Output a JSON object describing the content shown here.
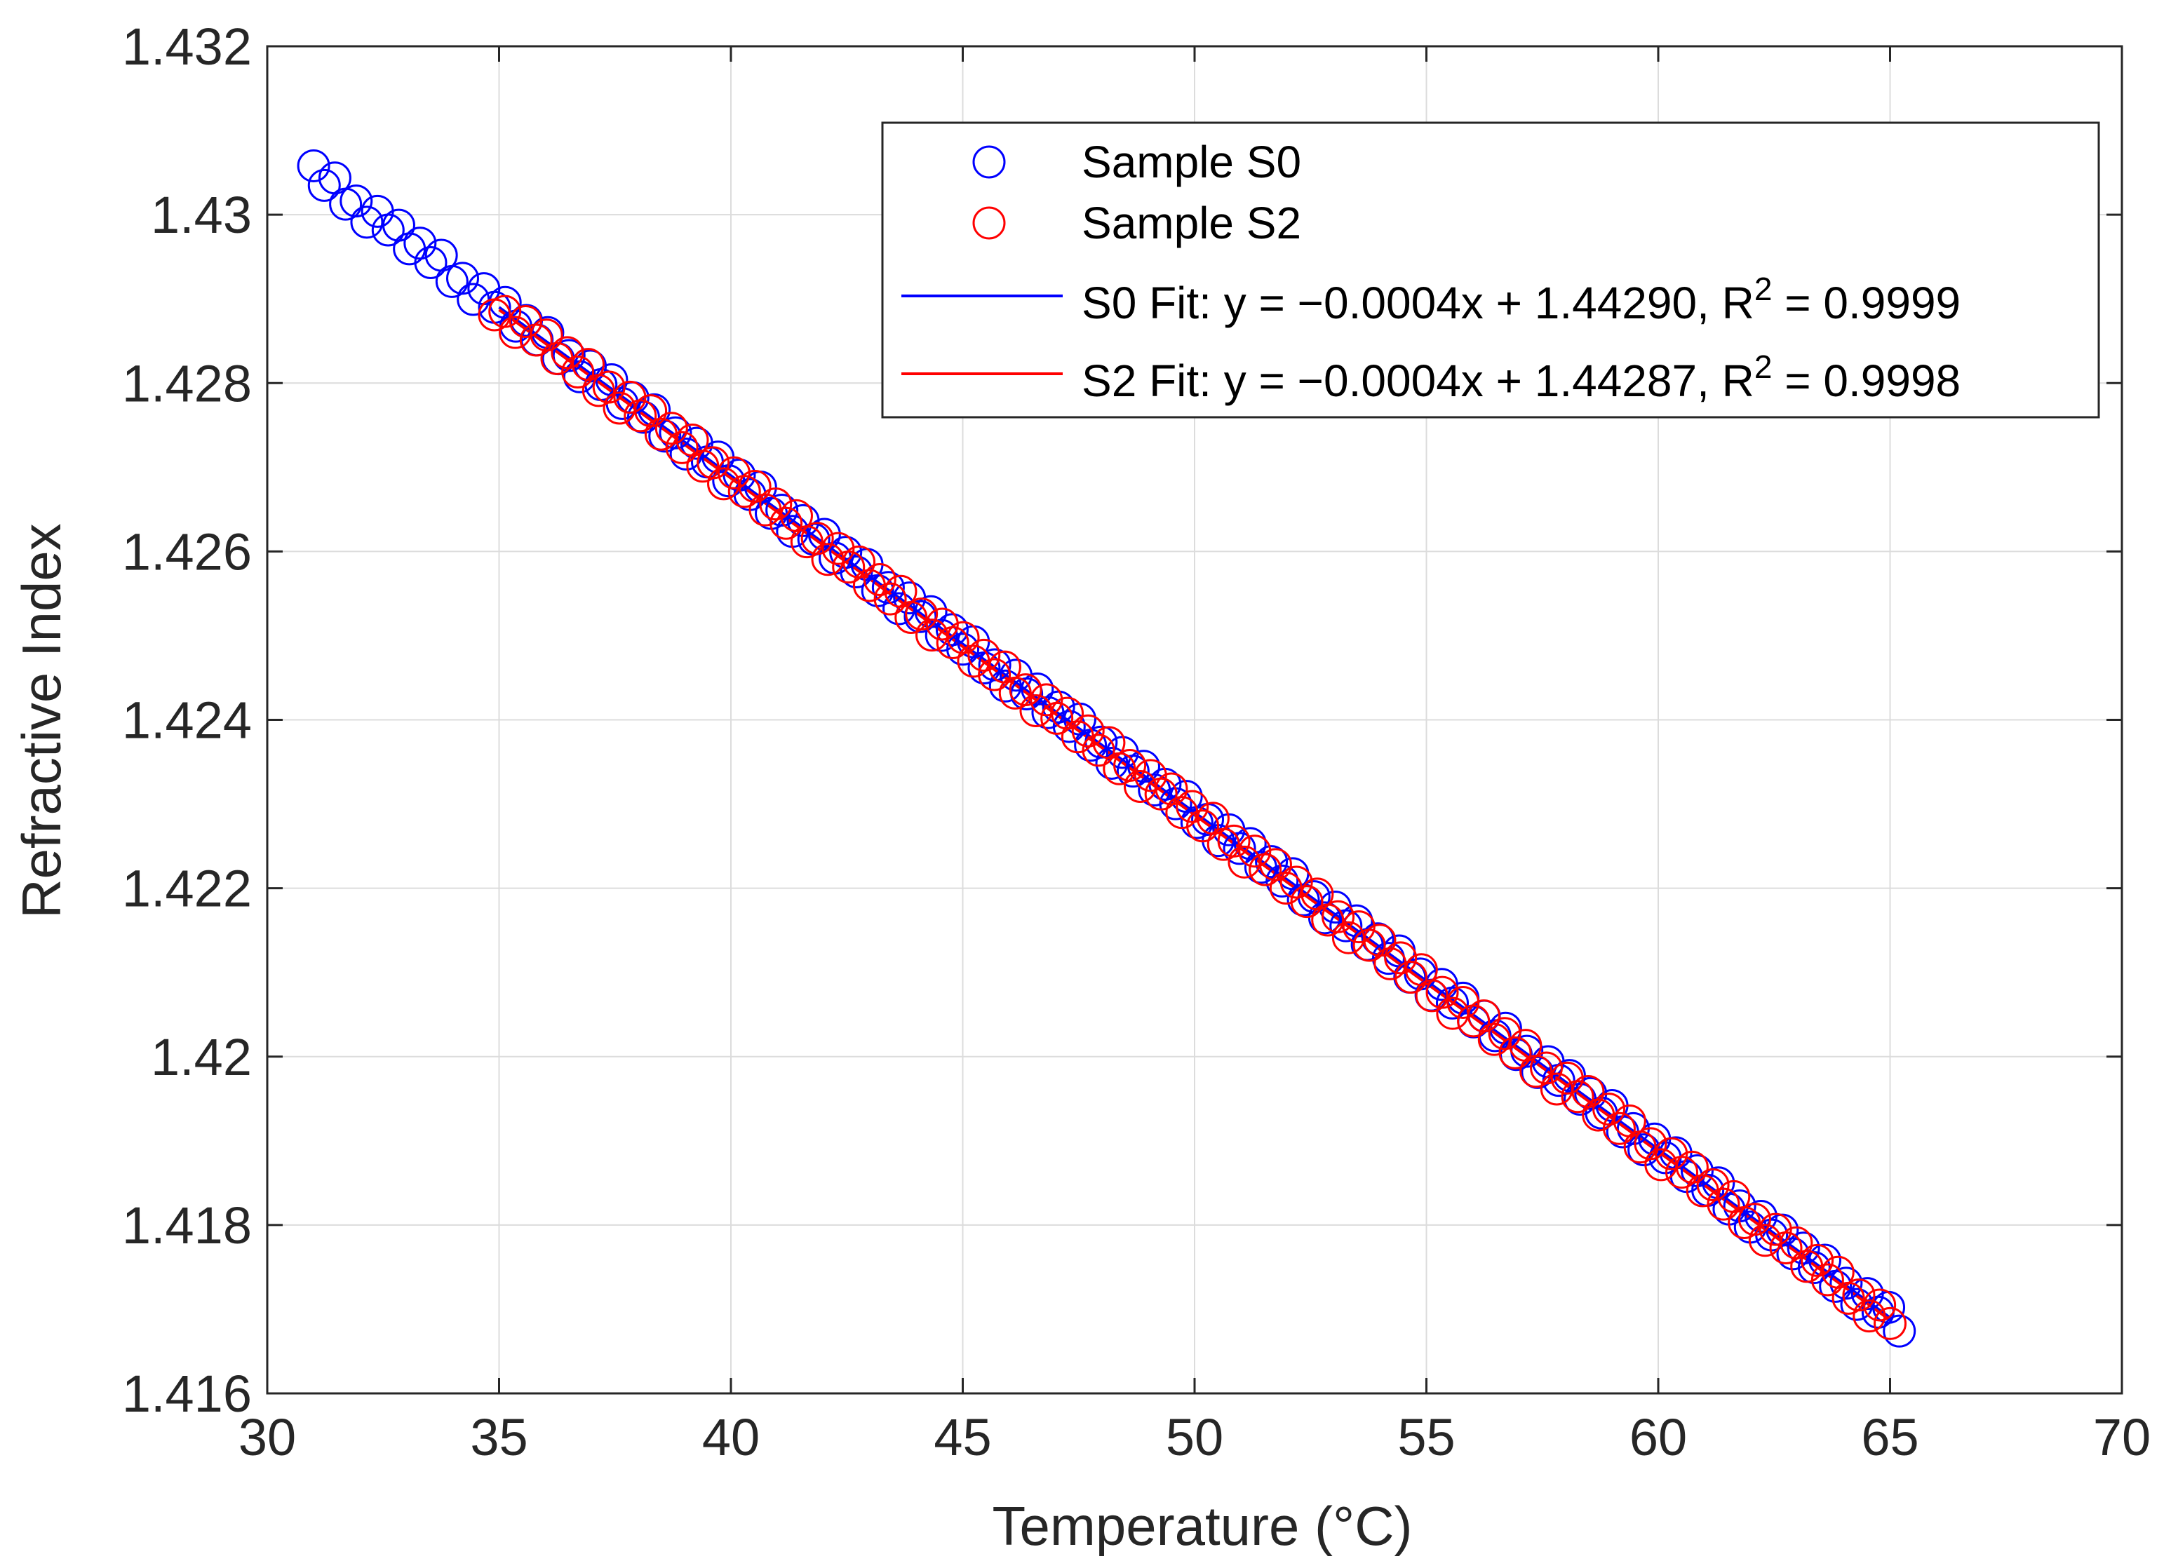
{
  "chart_data": {
    "type": "scatter",
    "title": "",
    "xlabel": "Temperature (°C)",
    "ylabel": "Refractive Index",
    "xlim": [
      30,
      70
    ],
    "ylim": [
      1.416,
      1.432
    ],
    "xticks": [
      30,
      35,
      40,
      45,
      50,
      55,
      60,
      65,
      70
    ],
    "xtick_labels": [
      "30",
      "35",
      "40",
      "45",
      "50",
      "55",
      "60",
      "65",
      "70"
    ],
    "yticks": [
      1.416,
      1.418,
      1.42,
      1.422,
      1.424,
      1.426,
      1.428,
      1.43,
      1.432
    ],
    "ytick_labels": [
      "1.416",
      "1.418",
      "1.42",
      "1.422",
      "1.424",
      "1.426",
      "1.428",
      "1.43",
      "1.432"
    ],
    "grid": true,
    "legend_position": "top-right",
    "series": [
      {
        "name": "Sample S0",
        "kind": "scatter",
        "marker": "circle-open",
        "color": "#0000ff",
        "x_start": 31.0,
        "x_end": 65.2,
        "count": 150,
        "slope": -0.0004,
        "intercept": 1.4429
      },
      {
        "name": "Sample S2",
        "kind": "scatter",
        "marker": "circle-open",
        "color": "#ff0000",
        "x_start": 34.9,
        "x_end": 65.0,
        "count": 135,
        "slope": -0.0004,
        "intercept": 1.44287
      },
      {
        "name": "S0 Fit",
        "kind": "line",
        "color": "#0000ff",
        "x_start": 35.0,
        "x_end": 65.0,
        "slope": -0.0004,
        "intercept": 1.4429
      },
      {
        "name": "S2 Fit",
        "kind": "line",
        "color": "#ff0000",
        "x_start": 35.0,
        "x_end": 65.0,
        "slope": -0.0004,
        "intercept": 1.44287
      }
    ],
    "legend": [
      {
        "label": "Sample S0",
        "kind": "marker",
        "color": "#0000ff"
      },
      {
        "label": "Sample S2",
        "kind": "marker",
        "color": "#ff0000"
      },
      {
        "label": "S0 Fit: y = −0.0004x + 1.44290, R",
        "sup": "2",
        "tail": " = 0.9999",
        "kind": "line",
        "color": "#0000ff"
      },
      {
        "label": "S2 Fit: y = −0.0004x + 1.44287, R",
        "sup": "2",
        "tail": " = 0.9998",
        "kind": "line",
        "color": "#ff0000"
      }
    ]
  }
}
